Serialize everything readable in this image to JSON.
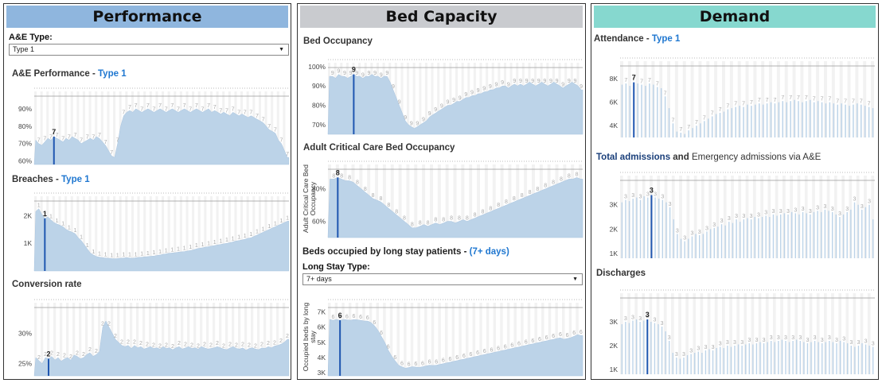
{
  "panels": {
    "performance": {
      "title": "Performance",
      "ae_type_label": "A&E Type:",
      "ae_type_value": "Type 1",
      "ae_performance": {
        "title": "A&E Performance - ",
        "highlight": "Type 1"
      },
      "breaches": {
        "title": "Breaches - ",
        "highlight": "Type 1"
      },
      "conversion": {
        "title": "Conversion rate"
      }
    },
    "bed_capacity": {
      "title": "Bed Capacity",
      "bed_occupancy": {
        "title": "Bed Occupancy"
      },
      "adult_cc": {
        "title": "Adult Critical Care Bed Occupancy",
        "ylabel": "Adult Critical Care Bed Occupancy"
      },
      "long_stay": {
        "title": "Beds occupied by long stay patients - ",
        "highlight": "(7+ days)",
        "ylabel": "Occupied beds by long stay"
      },
      "long_stay_type_label": "Long Stay Type:",
      "long_stay_type_value": "7+ days"
    },
    "demand": {
      "title": "Demand",
      "attendance": {
        "title": "Attendance - ",
        "highlight": "Type 1"
      },
      "admissions": {
        "title_a": "Total admissions",
        "title_b": " and ",
        "title_c": "Emergency admissions via A&E"
      },
      "discharges": {
        "title": "Discharges"
      }
    }
  },
  "chart_data": [
    {
      "id": "ae_perf",
      "type": "area",
      "ylim": [
        58,
        100
      ],
      "ticks": [
        {
          "v": 60,
          "t": "60%"
        },
        {
          "v": 70,
          "t": "70%"
        },
        {
          "v": 80,
          "t": "80%"
        },
        {
          "v": 90,
          "t": "90%"
        }
      ],
      "marker": {
        "i": 6,
        "label": "7"
      },
      "values": [
        72,
        70,
        69,
        71,
        73,
        72,
        74,
        73,
        72,
        71,
        73,
        72,
        74,
        73,
        72,
        70,
        71,
        72,
        73,
        72,
        74,
        73,
        71,
        69,
        66,
        63,
        62,
        70,
        80,
        86,
        88,
        89,
        88,
        90,
        89,
        88,
        89,
        90,
        89,
        88,
        89,
        90,
        89,
        88,
        89,
        90,
        89,
        88,
        89,
        90,
        89,
        88,
        89,
        90,
        89,
        88,
        89,
        90,
        88,
        89,
        88,
        87,
        88,
        87,
        86,
        88,
        87,
        86,
        87,
        86,
        85,
        86,
        85,
        84,
        83,
        82,
        80,
        78,
        77,
        76,
        72,
        70,
        66,
        62
      ]
    },
    {
      "id": "breaches",
      "type": "area",
      "ylim": [
        0,
        2700
      ],
      "ticks": [
        {
          "v": 1000,
          "t": "1K"
        },
        {
          "v": 2000,
          "t": "2K"
        }
      ],
      "marker": {
        "i": 3,
        "label": "1"
      },
      "values": [
        2150,
        2250,
        2050,
        1900,
        1950,
        1850,
        1750,
        1700,
        1650,
        1600,
        1500,
        1450,
        1400,
        1350,
        1200,
        1100,
        950,
        800,
        650,
        580,
        520,
        500,
        480,
        470,
        460,
        450,
        440,
        450,
        460,
        470,
        480,
        470,
        460,
        480,
        490,
        500,
        510,
        520,
        530,
        540,
        560,
        580,
        600,
        620,
        640,
        650,
        660,
        680,
        690,
        700,
        720,
        740,
        760,
        800,
        820,
        840,
        860,
        880,
        900,
        920,
        940,
        960,
        980,
        1000,
        1020,
        1050,
        1080,
        1100,
        1120,
        1150,
        1180,
        1200,
        1250,
        1300,
        1350,
        1400,
        1450,
        1500,
        1550,
        1600,
        1650,
        1700,
        1750,
        1800
      ]
    },
    {
      "id": "conversion",
      "type": "area",
      "ylim": [
        23,
        35
      ],
      "ticks": [
        {
          "v": 25,
          "t": "25%"
        },
        {
          "v": 30,
          "t": "30%"
        }
      ],
      "marker": {
        "i": 4,
        "label": "2"
      },
      "values": [
        26,
        25.5,
        25,
        26,
        25.8,
        26.2,
        25.6,
        26,
        25.4,
        25.8,
        26,
        25.6,
        26.4,
        26.2,
        25.8,
        26,
        26.5,
        26.8,
        26.2,
        26.5,
        27,
        31,
        32,
        31,
        30,
        29,
        28.5,
        28,
        27.8,
        28,
        27.5,
        28,
        27.6,
        27.8,
        27.4,
        27.6,
        27.8,
        27.5,
        27.6,
        27.4,
        27.8,
        27.5,
        27.6,
        27.3,
        27.6,
        27.8,
        27.4,
        27.6,
        27.8,
        27.5,
        27.6,
        27.4,
        27.8,
        27.6,
        27.4,
        27.5,
        27.6,
        27.8,
        27.6,
        27.4,
        27.3,
        27.6,
        27.8,
        27.5,
        27.4,
        27.6,
        27.2,
        27.5,
        27.6,
        27.4,
        27.3,
        27.6,
        27.5,
        27.8,
        27.6,
        27.9,
        28,
        28.2,
        28.5,
        29
      ]
    },
    {
      "id": "bed_occ",
      "type": "area",
      "ylim": [
        65,
        102
      ],
      "ticks": [
        {
          "v": 70,
          "t": "70%"
        },
        {
          "v": 80,
          "t": "80%"
        },
        {
          "v": 90,
          "t": "90%"
        },
        {
          "v": 100,
          "t": "100%"
        }
      ],
      "marker": {
        "i": 8,
        "label": "9"
      },
      "values": [
        95,
        95,
        94,
        96,
        95,
        95,
        94,
        95,
        96,
        95,
        95,
        94,
        95,
        95,
        96,
        95,
        95,
        94,
        95,
        95,
        92,
        88,
        84,
        80,
        76,
        72,
        70,
        69,
        68,
        69,
        70,
        71,
        72,
        74,
        75,
        76,
        77,
        78,
        79,
        80,
        80,
        81,
        82,
        82,
        83,
        84,
        84,
        85,
        85,
        86,
        86,
        87,
        87,
        88,
        88,
        89,
        89,
        90,
        90,
        89,
        90,
        91,
        90,
        91,
        90,
        91,
        92,
        91,
        90,
        91,
        92,
        91,
        90,
        91,
        92,
        91,
        90,
        89,
        90,
        91,
        92,
        91,
        90,
        88
      ]
    },
    {
      "id": "adult_cc",
      "type": "area",
      "ylim": [
        50,
        95
      ],
      "ticks": [
        {
          "v": 60,
          "t": "60%"
        },
        {
          "v": 80,
          "t": "80%"
        }
      ],
      "marker": {
        "i": 2,
        "label": "8"
      },
      "values": [
        86,
        86,
        87,
        86,
        85,
        85,
        84,
        82,
        80,
        78,
        76,
        74,
        73,
        72,
        70,
        68,
        66,
        64,
        62,
        60,
        58,
        56,
        56,
        57,
        58,
        57,
        58,
        59,
        58,
        59,
        60,
        60,
        59,
        60,
        61,
        60,
        61,
        62,
        63,
        64,
        65,
        66,
        67,
        68,
        69,
        70,
        71,
        72,
        73,
        74,
        75,
        76,
        77,
        78,
        79,
        80,
        81,
        82,
        83,
        84,
        85,
        86,
        86,
        87,
        86
      ]
    },
    {
      "id": "long_stay",
      "type": "area",
      "ylim": [
        2800,
        7600
      ],
      "ticks": [
        {
          "v": 3000,
          "t": "3K"
        },
        {
          "v": 4000,
          "t": "4K"
        },
        {
          "v": 5000,
          "t": "5K"
        },
        {
          "v": 6000,
          "t": "6K"
        },
        {
          "v": 7000,
          "t": "7K"
        }
      ],
      "marker": {
        "i": 3,
        "label": "6"
      },
      "values": [
        6500,
        6450,
        6500,
        6450,
        6500,
        6480,
        6450,
        6500,
        6480,
        6450,
        6400,
        6400,
        6300,
        6100,
        5800,
        5400,
        5000,
        4500,
        4100,
        3800,
        3500,
        3400,
        3300,
        3350,
        3400,
        3380,
        3350,
        3400,
        3450,
        3500,
        3480,
        3500,
        3550,
        3600,
        3650,
        3700,
        3750,
        3800,
        3850,
        3900,
        3950,
        4000,
        4050,
        4100,
        4150,
        4200,
        4250,
        4300,
        4350,
        4400,
        4450,
        4500,
        4550,
        4600,
        4650,
        4700,
        4750,
        4800,
        4850,
        4900,
        4950,
        5000,
        5050,
        5100,
        5150,
        5200,
        5250,
        5300,
        5200,
        5250,
        5300,
        5400,
        5500,
        5450
      ]
    },
    {
      "id": "attendance",
      "type": "bars",
      "ylim": [
        3000,
        9500
      ],
      "ticks": [
        {
          "v": 4000,
          "t": "4K"
        },
        {
          "v": 6000,
          "t": "6K"
        },
        {
          "v": 8000,
          "t": "8K"
        }
      ],
      "marker": {
        "i": 3,
        "label": "7"
      },
      "values": [
        7500,
        7600,
        7400,
        7700,
        7600,
        7500,
        7400,
        7600,
        7500,
        7300,
        7200,
        6500,
        5500,
        4200,
        3500,
        3400,
        3300,
        3600,
        3800,
        4000,
        4200,
        4400,
        4600,
        4800,
        5000,
        5100,
        5200,
        5400,
        5500,
        5600,
        5700,
        5600,
        5800,
        5700,
        5800,
        5900,
        5800,
        5900,
        6000,
        5900,
        6000,
        6100,
        6000,
        6100,
        6200,
        6100,
        6000,
        6100,
        6200,
        6000,
        6100,
        6000,
        5900,
        6000,
        5900,
        5800,
        5900,
        5800,
        5700,
        5800,
        5900,
        5800,
        5700,
        5600,
        5500
      ]
    },
    {
      "id": "admissions",
      "type": "bars",
      "ylim": [
        800,
        4200
      ],
      "ticks": [
        {
          "v": 1000,
          "t": "1K"
        },
        {
          "v": 2000,
          "t": "2K"
        },
        {
          "v": 3000,
          "t": "3K"
        }
      ],
      "marker": {
        "i": 8,
        "label": "3"
      },
      "values": [
        3100,
        3200,
        3150,
        3250,
        3300,
        3200,
        3350,
        3300,
        3400,
        3300,
        3250,
        3200,
        3100,
        2900,
        2400,
        1800,
        1600,
        1500,
        1600,
        1700,
        1800,
        1750,
        1800,
        1900,
        2000,
        2050,
        2100,
        2200,
        2150,
        2300,
        2250,
        2400,
        2300,
        2400,
        2450,
        2400,
        2500,
        2450,
        2500,
        2550,
        2500,
        2600,
        2550,
        2600,
        2650,
        2600,
        2700,
        2650,
        2600,
        2700,
        2650,
        2600,
        2700,
        2750,
        2700,
        2800,
        2750,
        2700,
        2600,
        2500,
        2600,
        2700,
        2800,
        3100,
        3000,
        2800,
        2900,
        3000,
        2400
      ]
    },
    {
      "id": "discharges",
      "type": "bars",
      "ylim": [
        800,
        4200
      ],
      "ticks": [
        {
          "v": 1000,
          "t": "1K"
        },
        {
          "v": 2000,
          "t": "2K"
        },
        {
          "v": 3000,
          "t": "3K"
        }
      ],
      "marker": {
        "i": 7,
        "label": "3"
      },
      "values": [
        2900,
        3000,
        2950,
        3050,
        3100,
        3000,
        3050,
        3100,
        3000,
        2950,
        2900,
        2800,
        2600,
        2200,
        1700,
        1500,
        1450,
        1500,
        1600,
        1650,
        1700,
        1750,
        1700,
        1800,
        1850,
        1800,
        1900,
        1950,
        1900,
        2000,
        1950,
        2000,
        2050,
        2000,
        2050,
        2100,
        2050,
        2100,
        2150,
        2100,
        2150,
        2200,
        2150,
        2200,
        2250,
        2200,
        2150,
        2200,
        2250,
        2200,
        2150,
        2100,
        2150,
        2200,
        2150,
        2100,
        2150,
        2200,
        2150,
        2100,
        2200,
        2150,
        2100,
        2000,
        1950,
        2000,
        2100,
        2050,
        2000,
        1950
      ]
    }
  ]
}
